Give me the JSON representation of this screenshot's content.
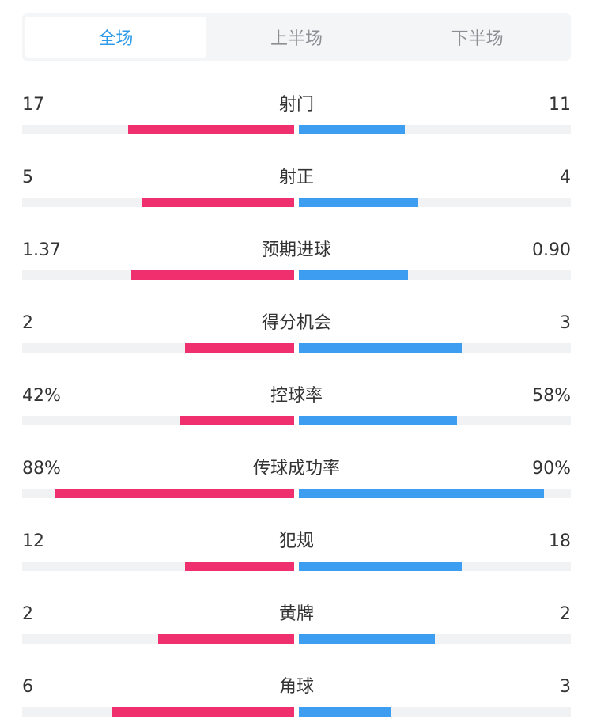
{
  "tabs": [
    {
      "label": "全场",
      "active": true
    },
    {
      "label": "上半场",
      "active": false
    },
    {
      "label": "下半场",
      "active": false
    }
  ],
  "colors": {
    "home": "#f0306e",
    "away": "#3d9df0",
    "track": "#f1f2f4",
    "active_tab": "#2f9be8"
  },
  "stats": [
    {
      "label": "射门",
      "home": "17",
      "away": "11",
      "home_bar": 0.61,
      "away_bar": 0.39
    },
    {
      "label": "射正",
      "home": "5",
      "away": "4",
      "home_bar": 0.56,
      "away_bar": 0.44
    },
    {
      "label": "预期进球",
      "home": "1.37",
      "away": "0.90",
      "home_bar": 0.6,
      "away_bar": 0.4
    },
    {
      "label": "得分机会",
      "home": "2",
      "away": "3",
      "home_bar": 0.4,
      "away_bar": 0.6
    },
    {
      "label": "控球率",
      "home": "42%",
      "away": "58%",
      "home_bar": 0.42,
      "away_bar": 0.58
    },
    {
      "label": "传球成功率",
      "home": "88%",
      "away": "90%",
      "home_bar": 0.88,
      "away_bar": 0.9
    },
    {
      "label": "犯规",
      "home": "12",
      "away": "18",
      "home_bar": 0.4,
      "away_bar": 0.6
    },
    {
      "label": "黄牌",
      "home": "2",
      "away": "2",
      "home_bar": 0.5,
      "away_bar": 0.5
    },
    {
      "label": "角球",
      "home": "6",
      "away": "3",
      "home_bar": 0.67,
      "away_bar": 0.34
    }
  ]
}
